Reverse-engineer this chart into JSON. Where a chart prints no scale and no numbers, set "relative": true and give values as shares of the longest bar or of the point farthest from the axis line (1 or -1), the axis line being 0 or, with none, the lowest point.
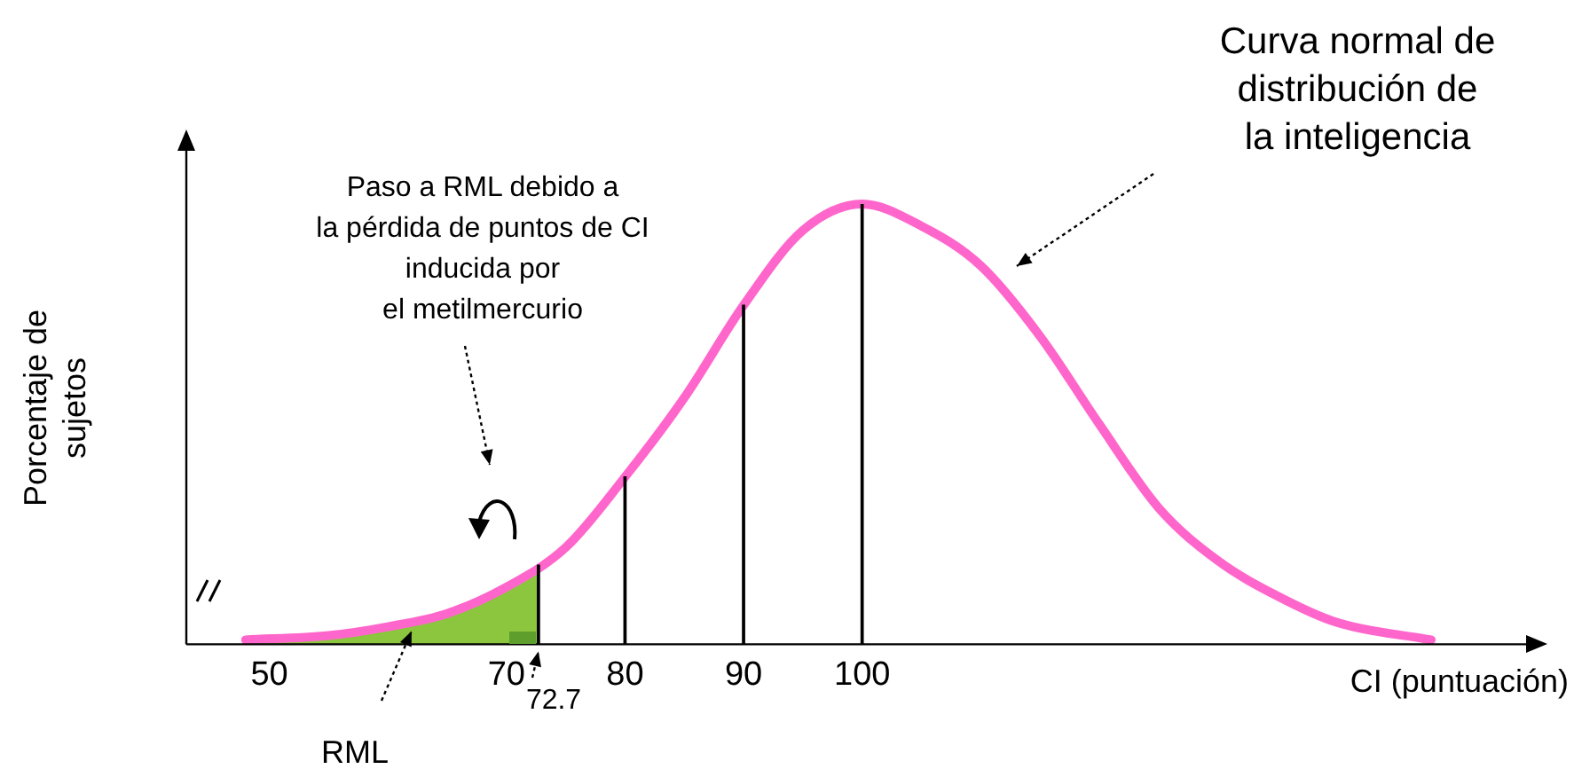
{
  "chart_data": {
    "type": "line",
    "relative": true,
    "xlabel": "CI (puntuación)",
    "ylabel": "Porcentaje de sujetos",
    "x": [
      48,
      55,
      60,
      65,
      70,
      75,
      80,
      85,
      90,
      95,
      100,
      105,
      110,
      115,
      120,
      125,
      130,
      135,
      140,
      148
    ],
    "series": [
      {
        "color": "#ff66cc",
        "values": [
          0.01,
          0.02,
          0.04,
          0.07,
          0.13,
          0.22,
          0.38,
          0.56,
          0.77,
          0.94,
          1,
          0.95,
          0.86,
          0.7,
          0.5,
          0.31,
          0.19,
          0.11,
          0.05,
          0.01
        ]
      },
      {
        "type": "area",
        "color": "#8cc63f",
        "x": [
          48,
          55,
          60,
          65,
          70,
          72.7
        ],
        "values": [
          0.01,
          0.02,
          0.04,
          0.07,
          0.13,
          0.18
        ]
      },
      {
        "type": "bar",
        "color": "#000000",
        "x": [
          72.7,
          80,
          90,
          100
        ],
        "values": [
          0.18,
          0.38,
          0.77,
          1
        ]
      }
    ],
    "xlim": [
      43,
      156
    ],
    "xticks": [
      50,
      70,
      80,
      90,
      100
    ],
    "grid": false,
    "legend": false,
    "marker": "none",
    "line_style": "solid",
    "annotations": [
      "Curva normal de\ndistribución de\nla inteligencia",
      "Paso a RML debido a\nla pérdida de puntos de CI\ninducida por\nel metilmercurio",
      {
        "text": "RML",
        "x": 62,
        "y": 0.03
      },
      {
        "text": "72.7",
        "x": 72.7,
        "y": 0
      }
    ]
  }
}
